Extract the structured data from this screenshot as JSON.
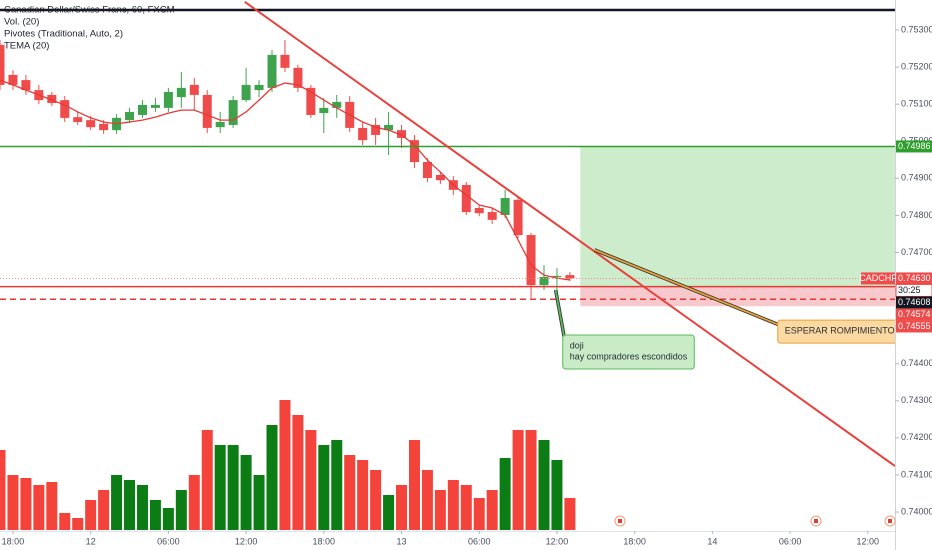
{
  "chart_data": {
    "type": "candlestick",
    "title": "Canadian Dollar/Swiss Franc, 60, FXCM",
    "indicators": [
      "Vol. (20)",
      "Pivotes (Traditional, Auto, 2)",
      "TEMA (20)"
    ],
    "open": [
      0.7526,
      0.75179,
      0.75165,
      0.75138,
      0.75125,
      0.75111,
      0.75065,
      0.75057,
      0.75047,
      0.7503,
      0.75057,
      0.75071,
      0.7509,
      0.7509,
      0.75119,
      0.75152,
      0.75125,
      0.75038,
      0.75044,
      0.75111,
      0.75138,
      0.75144,
      0.75233,
      0.75198,
      0.75144,
      0.75076,
      0.7509,
      0.75106,
      0.75036,
      0.75044,
      0.7503,
      0.7503,
      0.75003,
      0.74944,
      0.74909,
      0.74895,
      0.74882,
      0.7482,
      0.74809,
      0.74801,
      0.74842,
      0.74747,
      0.74612,
      0.74634,
      0.74639
    ],
    "high": [
      0.75273,
      0.75192,
      0.75179,
      0.75152,
      0.75133,
      0.75122,
      0.75079,
      0.75068,
      0.75057,
      0.75073,
      0.7509,
      0.75111,
      0.75117,
      0.75144,
      0.75187,
      0.75171,
      0.75138,
      0.75079,
      0.75122,
      0.75198,
      0.75165,
      0.75246,
      0.75273,
      0.75206,
      0.75152,
      0.75117,
      0.75125,
      0.75122,
      0.75052,
      0.75063,
      0.75079,
      0.75044,
      0.75017,
      0.74955,
      0.74917,
      0.74906,
      0.7489,
      0.74828,
      0.7482,
      0.74869,
      0.74852,
      0.74753,
      0.74666,
      0.74658,
      0.74647
    ],
    "low": [
      0.75138,
      0.75138,
      0.75125,
      0.751,
      0.75095,
      0.75052,
      0.75044,
      0.7503,
      0.7502,
      0.7502,
      0.75049,
      0.75063,
      0.75079,
      0.75079,
      0.7509,
      0.75084,
      0.75022,
      0.75022,
      0.75036,
      0.75106,
      0.75119,
      0.75133,
      0.75187,
      0.75133,
      0.75063,
      0.75022,
      0.75063,
      0.75025,
      0.7499,
      0.7499,
      0.74963,
      0.74982,
      0.74928,
      0.7489,
      0.74885,
      0.74855,
      0.74801,
      0.74798,
      0.74777,
      0.74793,
      0.74739,
      0.74577,
      0.74599,
      0.74599,
      0.74623
    ],
    "close": [
      0.75152,
      0.75152,
      0.75138,
      0.75111,
      0.75103,
      0.75063,
      0.75052,
      0.75038,
      0.7503,
      0.75063,
      0.75079,
      0.75098,
      0.75098,
      0.75133,
      0.75144,
      0.75125,
      0.75036,
      0.75052,
      0.75111,
      0.75152,
      0.75152,
      0.75233,
      0.75198,
      0.75144,
      0.75071,
      0.7509,
      0.75106,
      0.75036,
      0.75003,
      0.75017,
      0.75044,
      0.75009,
      0.74944,
      0.74901,
      0.74895,
      0.74869,
      0.74809,
      0.74806,
      0.74788,
      0.74847,
      0.74747,
      0.74612,
      0.74634,
      0.74637,
      0.7463
    ],
    "volume": [
      80,
      55,
      52,
      45,
      48,
      17,
      12,
      30,
      40,
      55,
      50,
      45,
      30,
      22,
      40,
      55,
      100,
      85,
      85,
      75,
      55,
      105,
      130,
      115,
      100,
      85,
      90,
      75,
      70,
      60,
      35,
      45,
      90,
      60,
      40,
      50,
      45,
      32,
      40,
      72,
      100,
      100,
      90,
      70,
      32
    ],
    "tema": [
      0.75165,
      0.75152,
      0.75138,
      0.75125,
      0.75111,
      0.75098,
      0.75079,
      0.75063,
      0.75052,
      0.75047,
      0.75052,
      0.75057,
      0.75065,
      0.75076,
      0.75084,
      0.75084,
      0.75071,
      0.75057,
      0.75057,
      0.75079,
      0.75111,
      0.75144,
      0.75157,
      0.75152,
      0.75133,
      0.75111,
      0.7509,
      0.75071,
      0.75052,
      0.75038,
      0.7503,
      0.75017,
      0.7499,
      0.74949,
      0.74917,
      0.74882,
      0.74855,
      0.74828,
      0.7482,
      0.74801,
      0.74734,
      0.74666,
      0.74639,
      0.74631,
      0.74626
    ],
    "up_color": "#3fa34d",
    "down_color": "#ef4b4b",
    "volume_up_color": "#0b7d14",
    "volume_down_color": "#f4433a",
    "tema_color": "#e53935",
    "xlim": [
      0,
      69.1
    ],
    "xticks": [
      {
        "value": 1,
        "label": "18:00"
      },
      {
        "value": 7,
        "label": "12"
      },
      {
        "value": 13,
        "label": "06:00"
      },
      {
        "value": 19,
        "label": "12:00"
      },
      {
        "value": 25,
        "label": "18:00"
      },
      {
        "value": 31,
        "label": "13"
      },
      {
        "value": 37,
        "label": "06:00"
      },
      {
        "value": 43,
        "label": "12:00"
      },
      {
        "value": 49,
        "label": "18:00"
      },
      {
        "value": 55,
        "label": "14"
      },
      {
        "value": 61,
        "label": "06:00"
      },
      {
        "value": 67,
        "label": "12:00"
      }
    ],
    "ylim": [
      0.73965,
      0.75381
    ],
    "yticks": [
      {
        "value": 0.74,
        "label": "0.74000"
      },
      {
        "value": 0.741,
        "label": "0.74100"
      },
      {
        "value": 0.742,
        "label": "0.74200"
      },
      {
        "value": 0.743,
        "label": "0.74300"
      },
      {
        "value": 0.744,
        "label": "0.74400"
      },
      {
        "value": 0.745,
        "label": "0.74500"
      },
      {
        "value": 0.746,
        "label": "0.74600"
      },
      {
        "value": 0.747,
        "label": "0.74700"
      },
      {
        "value": 0.748,
        "label": "0.74800"
      },
      {
        "value": 0.749,
        "label": "0.74900"
      },
      {
        "value": 0.75,
        "label": "0.75000"
      },
      {
        "value": 0.751,
        "label": "0.75100"
      },
      {
        "value": 0.752,
        "label": "0.75200"
      },
      {
        "value": 0.753,
        "label": "0.75300"
      }
    ],
    "hlines": [
      {
        "price": 0.75354,
        "color": "#131722",
        "style": "solid"
      },
      {
        "price": 0.74986,
        "color": "#2e9e2e",
        "style": "solid"
      },
      {
        "price": 0.7463,
        "color": "#f08c8c",
        "style": "dotted"
      },
      {
        "price": 0.74608,
        "color": "#e53935",
        "style": "solid"
      },
      {
        "price": 0.74574,
        "color": "#e53935",
        "style": "dashed"
      }
    ],
    "boxes": [
      {
        "x": [
          44.8,
          69.1
        ],
        "y": [
          0.74608,
          0.74986
        ],
        "color": "#cdeccb"
      },
      {
        "x": [
          44.8,
          69.1
        ],
        "y": [
          0.74555,
          0.74608
        ],
        "color": "#f8c9cc"
      }
    ],
    "trend_lines": [
      {
        "x": [
          18.9,
          69.1
        ],
        "y": [
          0.75376,
          0.74124
        ],
        "color": "#e8413c"
      }
    ],
    "annotations": [
      {
        "text": [
          "doji",
          "hay compradores escondidos"
        ],
        "x": [
          42.9,
          43.6
        ],
        "y": [
          0.74599,
          0.74464
        ],
        "color": "#c9ecc6",
        "border": "#5cb85c"
      },
      {
        "text": [
          "ESPERAR ROMPIMIENTO"
        ],
        "x": [
          45.9,
          60.2
        ],
        "y": [
          0.74707,
          0.74504
        ],
        "color": "#fbd9a0",
        "border": "#e8a13a"
      }
    ],
    "price_tags": [
      {
        "value": 0.74986,
        "color": "#2e9e2e"
      },
      {
        "symbol": "CADCHF",
        "value": 0.7463,
        "label": "0.74630",
        "countdown": "30:25",
        "color": "#ef4b4b"
      },
      {
        "value": 0.74608,
        "color": "#131722"
      },
      {
        "value": 0.74574,
        "color": "#ef4b4b"
      },
      {
        "value": 0.74555,
        "color": "#ef4b4b"
      }
    ]
  }
}
